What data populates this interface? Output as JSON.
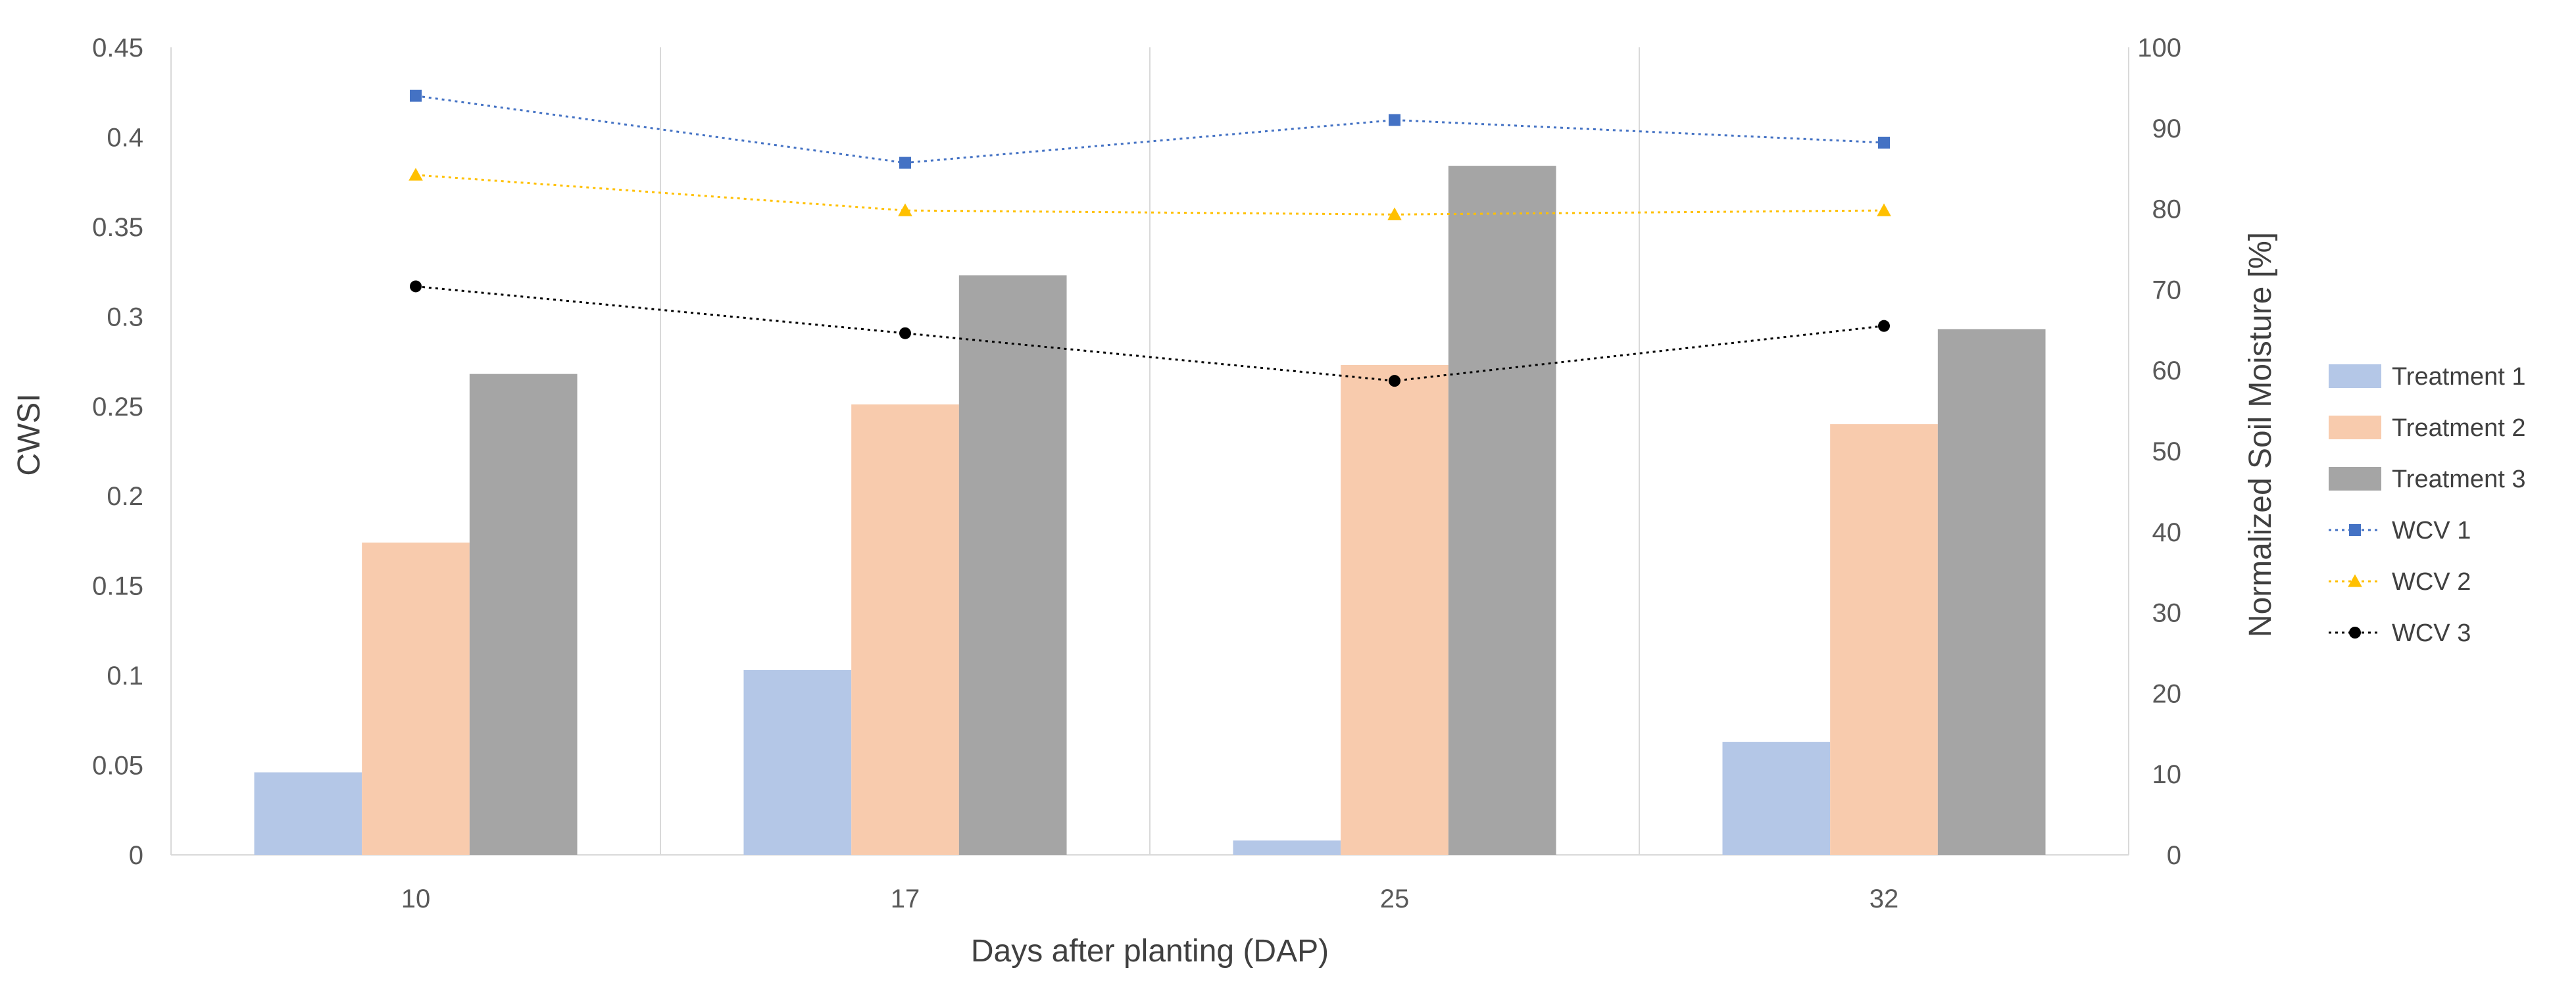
{
  "chart_data": {
    "type": "bar+line",
    "title": "",
    "categories": [
      "10",
      "17",
      "25",
      "32"
    ],
    "xlabel": "Days after planting (DAP)",
    "ylabel": "CWSI",
    "y2label": "Normalized Soil Moisture [%]",
    "ylim": [
      0,
      0.45
    ],
    "y2lim": [
      0,
      100
    ],
    "yticks": [
      "0",
      "0.05",
      "0.1",
      "0.15",
      "0.2",
      "0.25",
      "0.3",
      "0.35",
      "0.4",
      "0.45"
    ],
    "y2ticks": [
      "0",
      "10",
      "20",
      "30",
      "40",
      "50",
      "60",
      "70",
      "80",
      "90",
      "100"
    ],
    "gridlines": "vertical",
    "legend_position": "right",
    "bars": [
      {
        "name": "Treatment 1",
        "color": "#b4c7e7",
        "values": [
          0.046,
          0.103,
          0.008,
          0.063
        ]
      },
      {
        "name": "Treatment 2",
        "color": "#f8cbad",
        "values": [
          0.174,
          0.251,
          0.273,
          0.24
        ]
      },
      {
        "name": "Treatment 3",
        "color": "#a5a5a5",
        "values": [
          0.268,
          0.323,
          0.384,
          0.293
        ]
      }
    ],
    "lines": [
      {
        "name": "WCV 1",
        "color": "#4472c4",
        "marker": "square",
        "axis": "y2",
        "values": [
          94.0,
          85.7,
          91.0,
          88.2
        ]
      },
      {
        "name": "WCV 2",
        "color": "#ffc000",
        "marker": "triangle",
        "axis": "y2",
        "values": [
          84.2,
          79.8,
          79.3,
          79.8
        ]
      },
      {
        "name": "WCV 3",
        "color": "#000000",
        "marker": "circle",
        "axis": "y2",
        "values": [
          70.4,
          64.6,
          58.7,
          65.5
        ]
      }
    ]
  }
}
